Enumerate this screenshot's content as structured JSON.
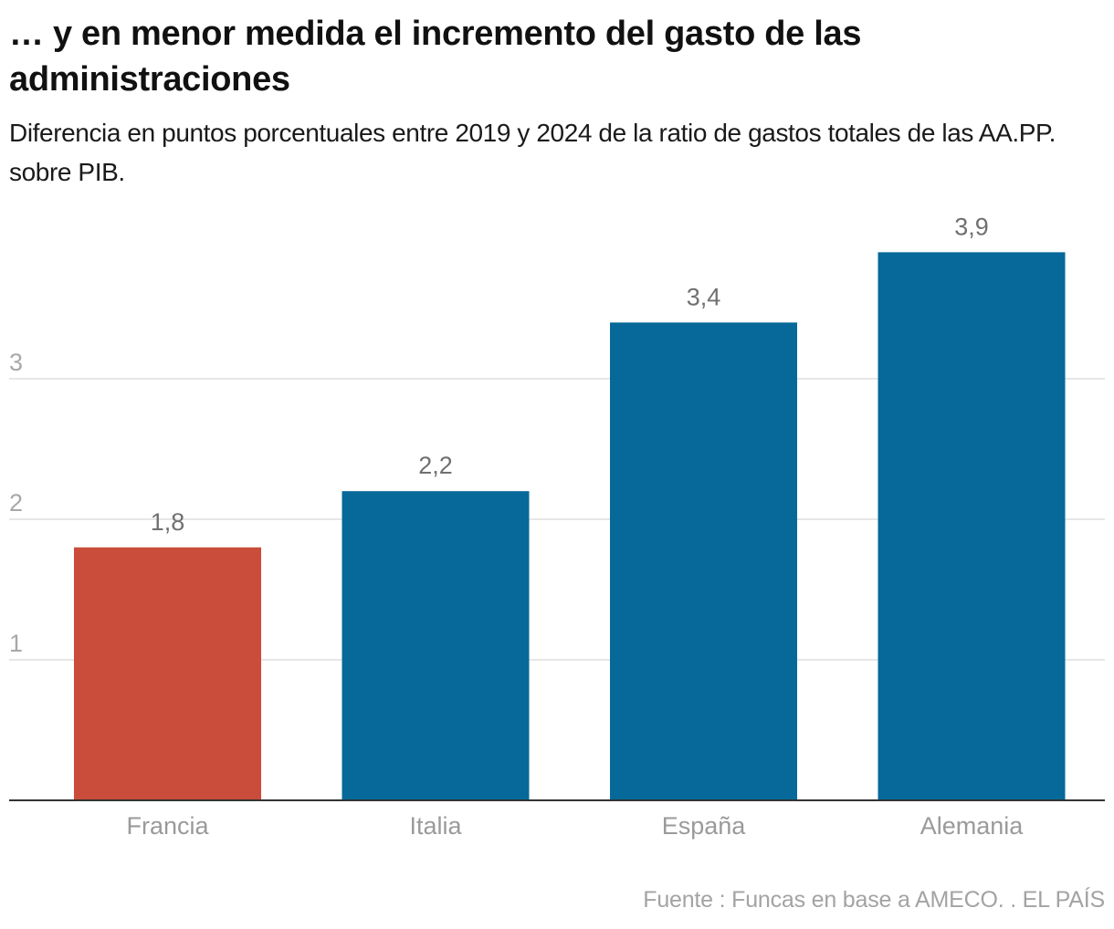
{
  "header": {
    "title": "… y en menor medida el incremento del gasto de las administraciones",
    "subtitle": "Diferencia en puntos porcentuales entre 2019 y 2024 de la ratio de gastos totales de las AA.PP. sobre PIB."
  },
  "footer": {
    "source": "Fuente : Funcas en base a AMECO. . EL PAÍS"
  },
  "colors": {
    "highlight": "#c94d3a",
    "default": "#066999",
    "gridline": "#e6e6e6",
    "baseline": "#333333"
  },
  "chart_data": {
    "type": "bar",
    "title": "… y en menor medida el incremento del gasto de las administraciones",
    "subtitle": "Diferencia en puntos porcentuales entre 2019 y 2024 de la ratio de gastos totales de las AA.PP. sobre PIB.",
    "xlabel": "",
    "ylabel": "",
    "categories": [
      "Francia",
      "Italia",
      "España",
      "Alemania"
    ],
    "values": [
      1.8,
      2.2,
      3.4,
      3.9
    ],
    "value_labels": [
      "1,8",
      "2,2",
      "3,4",
      "3,9"
    ],
    "highlighted": [
      "Francia"
    ],
    "yticks": [
      1,
      2,
      3
    ],
    "ytick_labels": [
      "1",
      "2",
      "3"
    ],
    "ylim": [
      0,
      4.3
    ],
    "grid": true,
    "legend": "none",
    "source": "Fuente : Funcas en base a AMECO. . EL PAÍS"
  }
}
